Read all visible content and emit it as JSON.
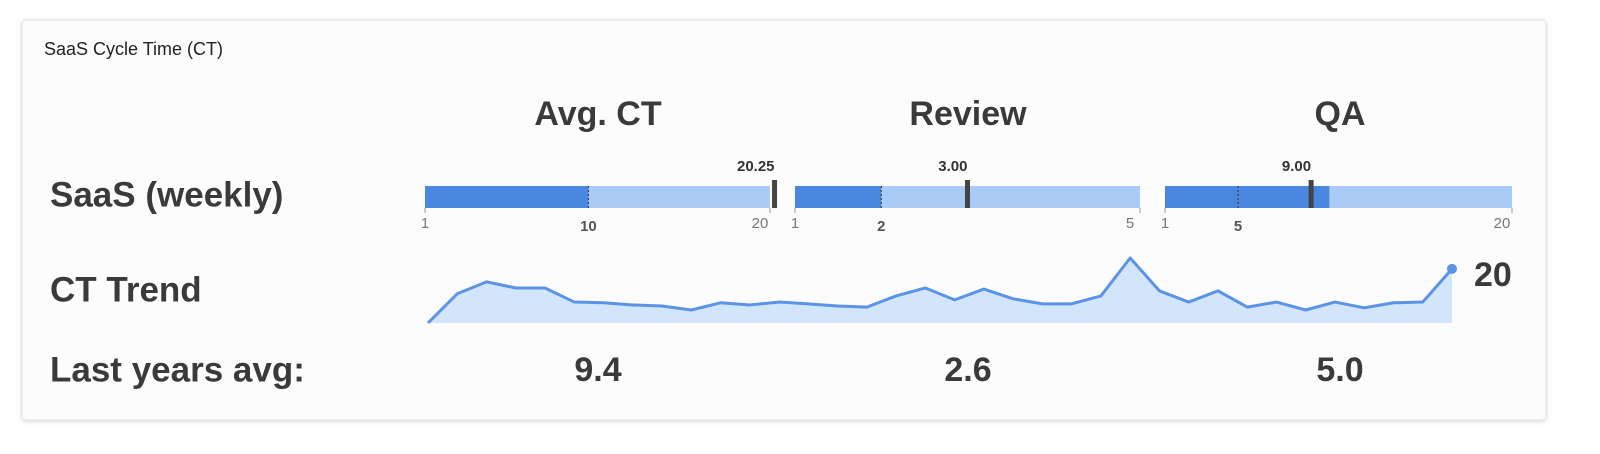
{
  "title": "SaaS Cycle Time (CT)",
  "row_labels": [
    "SaaS (weekly)",
    "CT Trend",
    "Last years avg:"
  ],
  "columns": [
    {
      "header": "Avg. CT",
      "bullet": {
        "range": [
          1,
          20
        ],
        "value": 10,
        "target": 10,
        "marker": 20.25
      },
      "last_years_avg": "9.4"
    },
    {
      "header": "Review",
      "bullet": {
        "range": [
          1,
          5
        ],
        "value": 2,
        "target": 2,
        "marker": 3,
        "marker_label": "3.00"
      },
      "last_years_avg": "2.6"
    },
    {
      "header": "QA",
      "bullet": {
        "range": [
          1,
          20
        ],
        "value": 10,
        "target": 5,
        "marker": 9,
        "marker_label": "9.00"
      },
      "last_years_avg": "5.0"
    }
  ],
  "trend": {
    "type": "area",
    "color": "#5b93e6",
    "values": [
      5,
      13.1,
      16.4,
      14.7,
      14.7,
      10.8,
      10.6,
      10,
      9.7,
      8.6,
      10.6,
      10,
      10.8,
      10.3,
      9.7,
      9.4,
      12.5,
      14.7,
      11.4,
      14.4,
      11.7,
      10.3,
      10.3,
      12.5,
      23,
      13.9,
      10.8,
      13.9,
      9.4,
      10.8,
      8.6,
      10.8,
      9.2,
      10.6,
      10.8,
      20
    ]
  }
}
